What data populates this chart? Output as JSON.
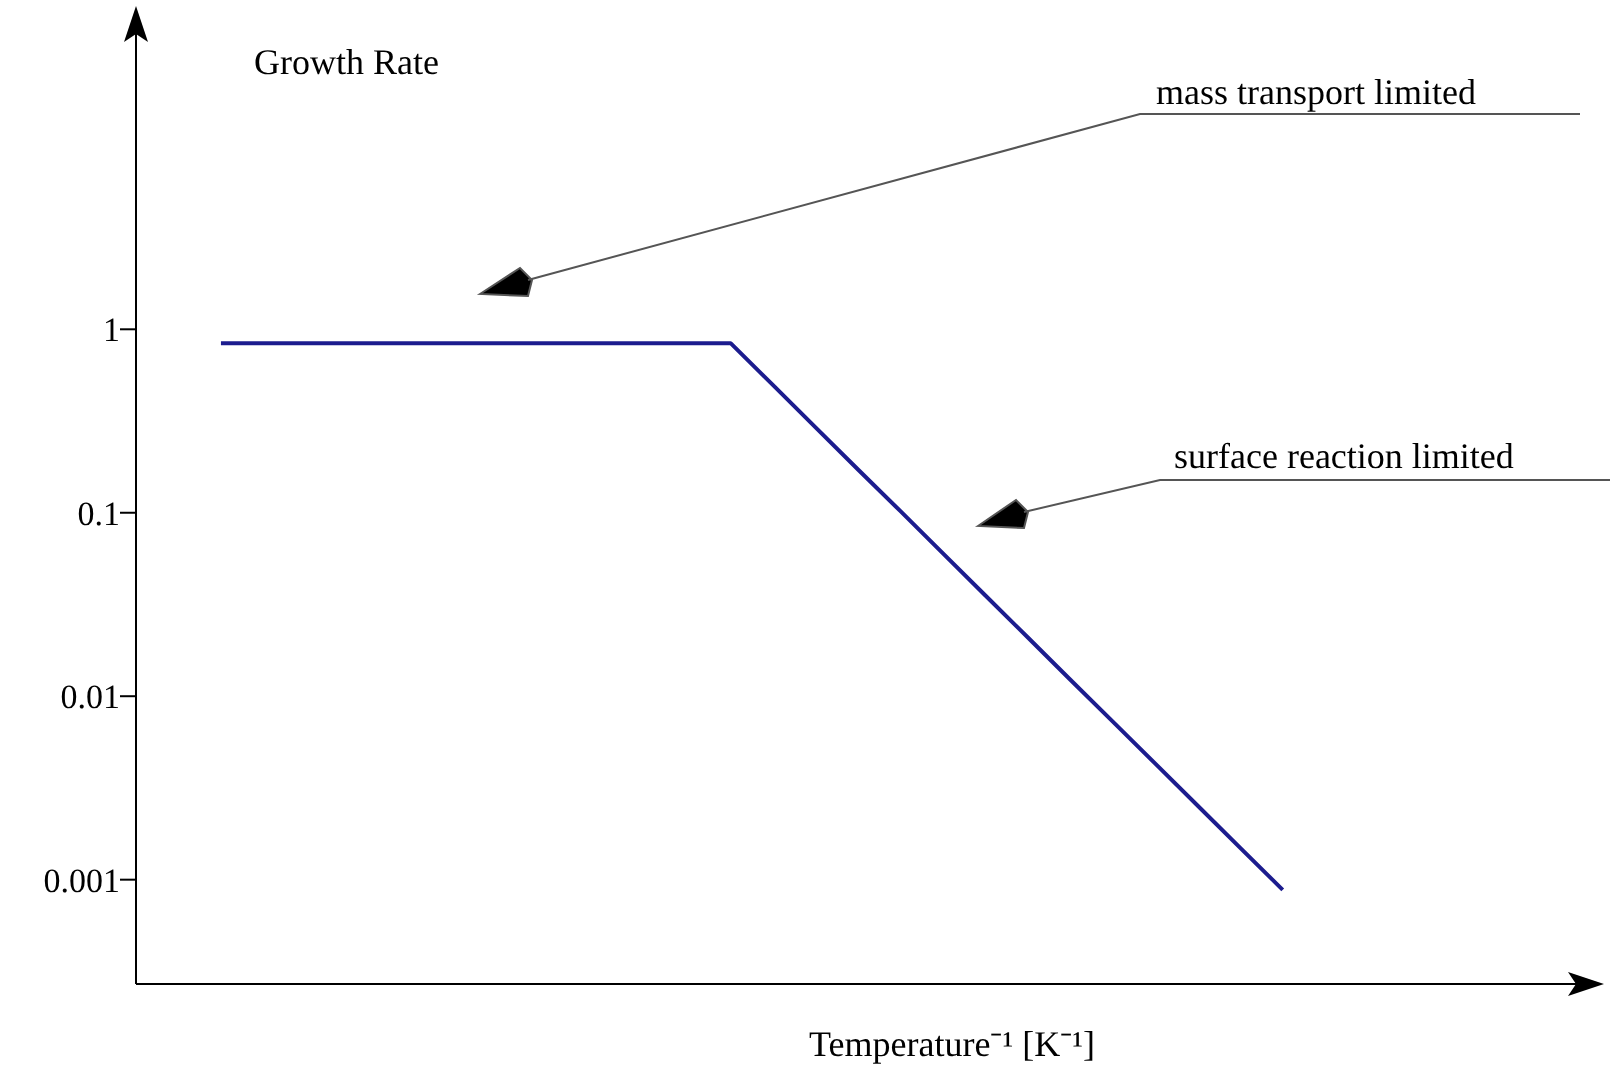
{
  "chart_data": {
    "type": "line",
    "ylabel": "Growth Rate",
    "xlabel": "Temperature⁻¹ [K⁻¹]",
    "log": "y",
    "ylim": [
      0.00027,
      55
    ],
    "yticks": [
      1,
      0.1,
      0.01,
      0.001
    ],
    "grid": false,
    "marker": "none",
    "line_style": "solid",
    "categories": [
      null,
      null,
      null,
      null,
      null,
      null,
      null,
      null,
      null,
      null,
      null,
      null,
      null,
      null,
      null,
      null,
      null,
      null,
      null,
      null,
      null,
      null,
      null,
      null,
      null,
      null,
      null,
      null,
      null,
      null,
      null,
      null,
      null,
      null,
      null
    ],
    "series": [
      {
        "color": "#1c1c8e",
        "values": [
          null,
          null,
          0.84,
          0.84,
          0.84,
          0.84,
          0.84,
          0.84,
          0.84,
          0.84,
          0.84,
          0.84,
          0.84,
          0.84,
          0.84,
          0.496,
          0.292,
          0.172,
          0.102,
          0.06,
          0.0354,
          0.0209,
          0.0123,
          0.00727,
          0.00429,
          0.00253,
          0.00149,
          0.00088,
          null,
          null,
          null,
          null,
          null,
          null,
          null
        ]
      }
    ],
    "annotations": [
      "mass transport limited",
      "surface reaction limited"
    ]
  }
}
